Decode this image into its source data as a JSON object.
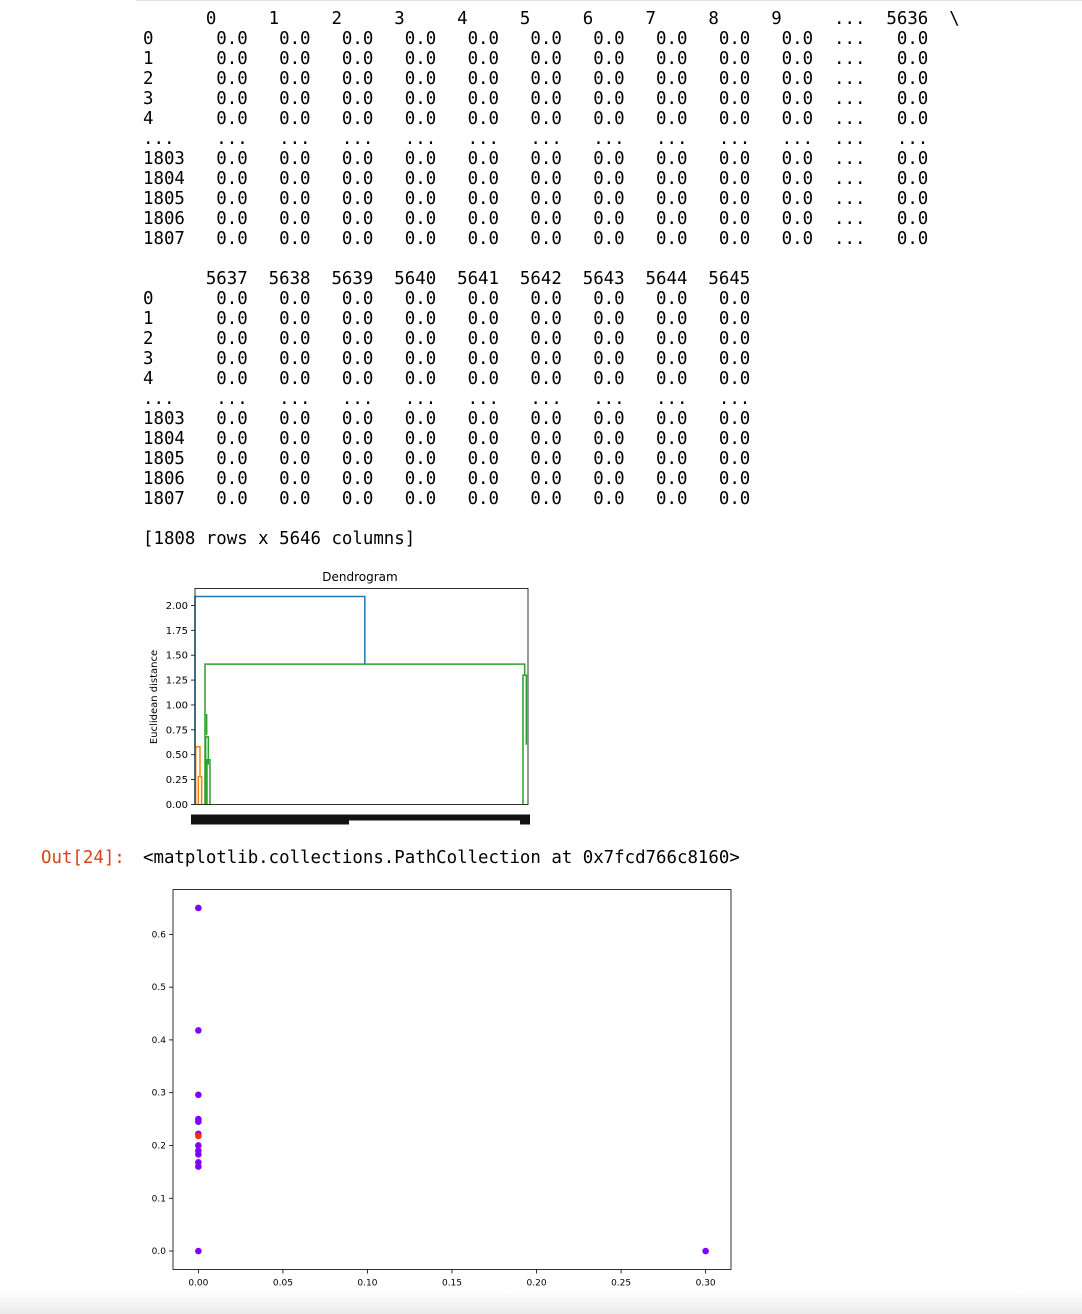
{
  "dataframe": {
    "block1_text": "      0     1     2     3     4     5     6     7     8     9     ...  5636  \\\n0      0.0   0.0   0.0   0.0   0.0   0.0   0.0   0.0   0.0   0.0  ...   0.0\n1      0.0   0.0   0.0   0.0   0.0   0.0   0.0   0.0   0.0   0.0  ...   0.0\n2      0.0   0.0   0.0   0.0   0.0   0.0   0.0   0.0   0.0   0.0  ...   0.0\n3      0.0   0.0   0.0   0.0   0.0   0.0   0.0   0.0   0.0   0.0  ...   0.0\n4      0.0   0.0   0.0   0.0   0.0   0.0   0.0   0.0   0.0   0.0  ...   0.0\n...    ...   ...   ...   ...   ...   ...   ...   ...   ...   ...  ...   ...\n1803   0.0   0.0   0.0   0.0   0.0   0.0   0.0   0.0   0.0   0.0  ...   0.0\n1804   0.0   0.0   0.0   0.0   0.0   0.0   0.0   0.0   0.0   0.0  ...   0.0\n1805   0.0   0.0   0.0   0.0   0.0   0.0   0.0   0.0   0.0   0.0  ...   0.0\n1806   0.0   0.0   0.0   0.0   0.0   0.0   0.0   0.0   0.0   0.0  ...   0.0\n1807   0.0   0.0   0.0   0.0   0.0   0.0   0.0   0.0   0.0   0.0  ...   0.0",
    "block2_text": "      5637  5638  5639  5640  5641  5642  5643  5644  5645\n0      0.0   0.0   0.0   0.0   0.0   0.0   0.0   0.0   0.0\n1      0.0   0.0   0.0   0.0   0.0   0.0   0.0   0.0   0.0\n2      0.0   0.0   0.0   0.0   0.0   0.0   0.0   0.0   0.0\n3      0.0   0.0   0.0   0.0   0.0   0.0   0.0   0.0   0.0\n4      0.0   0.0   0.0   0.0   0.0   0.0   0.0   0.0   0.0\n...    ...   ...   ...   ...   ...   ...   ...   ...   ...\n1803   0.0   0.0   0.0   0.0   0.0   0.0   0.0   0.0   0.0\n1804   0.0   0.0   0.0   0.0   0.0   0.0   0.0   0.0   0.0\n1805   0.0   0.0   0.0   0.0   0.0   0.0   0.0   0.0   0.0\n1806   0.0   0.0   0.0   0.0   0.0   0.0   0.0   0.0   0.0\n1807   0.0   0.0   0.0   0.0   0.0   0.0   0.0   0.0   0.0",
    "shape_text": "[1808 rows x 5646 columns]"
  },
  "output": {
    "prompt": "Out[24]:",
    "text": "<matplotlib.collections.PathCollection at 0x7fcd766c8160>"
  },
  "chart_data": [
    {
      "type": "dendrogram",
      "title": "Dendrogram",
      "ylabel": "Euclidean distance",
      "xlabel": "",
      "ylim": [
        0,
        2.17
      ],
      "yticks": [
        "0.00",
        "0.25",
        "0.50",
        "0.75",
        "1.00",
        "1.25",
        "1.50",
        "1.75",
        "2.00"
      ],
      "colors": {
        "root": "#1f77b4",
        "cluster_orange": "#ff7f0e",
        "cluster_green": "#2ca02c"
      },
      "merges": [
        {
          "color": "#1f77b4",
          "height": 2.09,
          "left": {
            "x": 0.0,
            "h": 0.0
          },
          "right": {
            "x": 0.51,
            "h": 1.41
          }
        },
        {
          "color": "#2ca02c",
          "height": 1.41,
          "left": {
            "x": 0.03,
            "h": 0.9
          },
          "right": {
            "x": 0.99,
            "h": 1.3
          }
        },
        {
          "color": "#2ca02c",
          "height": 1.3,
          "left": {
            "x": 0.985,
            "h": 0.0
          },
          "right": {
            "x": 0.995,
            "h": 0.6
          }
        },
        {
          "color": "#2ca02c",
          "height": 0.9,
          "left": {
            "x": 0.03,
            "h": 0.0
          },
          "right": {
            "x": 0.035,
            "h": 0.7
          }
        },
        {
          "color": "#2ca02c",
          "height": 0.68,
          "left": {
            "x": 0.032,
            "h": 0.0
          },
          "right": {
            "x": 0.04,
            "h": 0.4
          }
        },
        {
          "color": "#ff7f0e",
          "height": 0.58,
          "left": {
            "x": 0.002,
            "h": 0.0
          },
          "right": {
            "x": 0.015,
            "h": 0.28
          }
        },
        {
          "color": "#ff7f0e",
          "height": 0.28,
          "left": {
            "x": 0.01,
            "h": 0.0
          },
          "right": {
            "x": 0.02,
            "h": 0.0
          }
        },
        {
          "color": "#2ca02c",
          "height": 0.45,
          "left": {
            "x": 0.036,
            "h": 0.0
          },
          "right": {
            "x": 0.045,
            "h": 0.0
          }
        }
      ]
    },
    {
      "type": "scatter",
      "title": "",
      "xlabel": "",
      "ylabel": "",
      "xlim": [
        -0.015,
        0.315
      ],
      "ylim": [
        -0.035,
        0.685
      ],
      "xticks": [
        "0.00",
        "0.05",
        "0.10",
        "0.15",
        "0.20",
        "0.25",
        "0.30"
      ],
      "yticks": [
        "0.0",
        "0.1",
        "0.2",
        "0.3",
        "0.4",
        "0.5",
        "0.6"
      ],
      "grid": false,
      "points": [
        {
          "x": 0.0,
          "y": 0.65,
          "color": "#8000ff"
        },
        {
          "x": 0.0,
          "y": 0.418,
          "color": "#8000ff"
        },
        {
          "x": 0.0,
          "y": 0.296,
          "color": "#8000ff"
        },
        {
          "x": 0.0,
          "y": 0.25,
          "color": "#8000ff"
        },
        {
          "x": 0.0,
          "y": 0.245,
          "color": "#8000ff"
        },
        {
          "x": 0.0,
          "y": 0.222,
          "color": "#8000ff"
        },
        {
          "x": 0.0,
          "y": 0.218,
          "color": "#ff2d00"
        },
        {
          "x": 0.0,
          "y": 0.2,
          "color": "#8000ff"
        },
        {
          "x": 0.0,
          "y": 0.19,
          "color": "#8000ff"
        },
        {
          "x": 0.0,
          "y": 0.183,
          "color": "#8000ff"
        },
        {
          "x": 0.0,
          "y": 0.168,
          "color": "#8000ff"
        },
        {
          "x": 0.0,
          "y": 0.16,
          "color": "#8000ff"
        },
        {
          "x": 0.0,
          "y": 0.0,
          "color": "#8000ff"
        },
        {
          "x": 0.3,
          "y": 0.0,
          "color": "#8000ff"
        }
      ]
    }
  ]
}
